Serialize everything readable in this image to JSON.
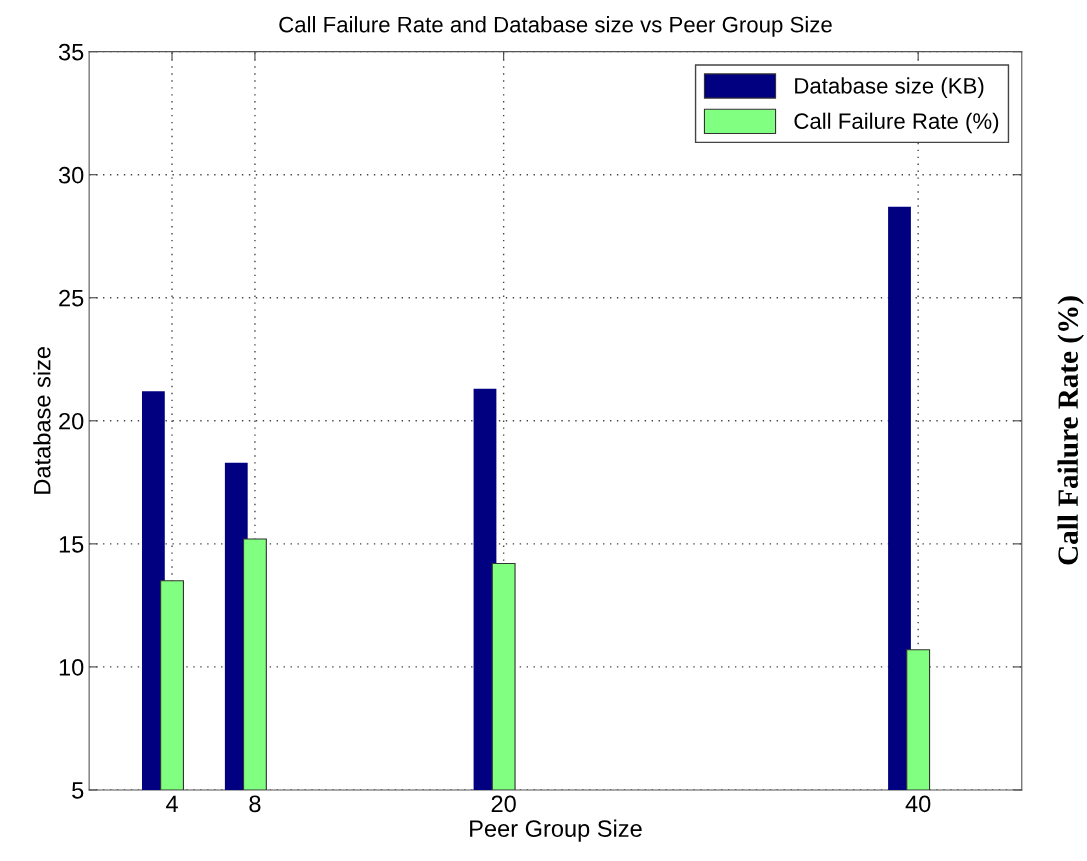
{
  "chart_data": {
    "type": "bar",
    "title": "Call Failure Rate and Database size vs Peer Group Size",
    "xlabel": "Peer Group Size",
    "ylabel": "Database size",
    "y2label": "Call Failure Rate (%)",
    "x": [
      4,
      8,
      20,
      40
    ],
    "series": [
      {
        "name": "Database size (KB)",
        "color": "#000080",
        "values": [
          21.2,
          18.3,
          21.3,
          28.7
        ]
      },
      {
        "name": "Call Failure Rate (%)",
        "color": "#80ff80",
        "values": [
          13.5,
          15.2,
          14.2,
          10.7
        ]
      }
    ],
    "xlim": [
      0,
      45
    ],
    "xticks": [
      4,
      8,
      20,
      40
    ],
    "ylim": [
      5,
      35
    ],
    "yticks": [
      5,
      10,
      15,
      20,
      25,
      30,
      35
    ],
    "grid": true,
    "legend": "top right"
  }
}
